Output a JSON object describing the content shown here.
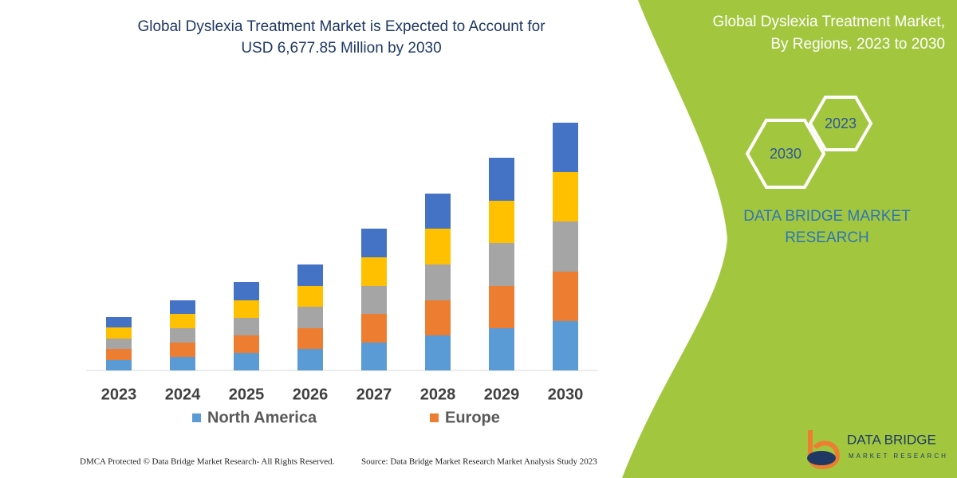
{
  "chart_data": {
    "type": "bar",
    "stacked": true,
    "title": [
      "Global Dyslexia Treatment Market is Expected to Account for",
      "USD 6,677.85 Million by 2030"
    ],
    "categories": [
      "2023",
      "2024",
      "2025",
      "2026",
      "2027",
      "2028",
      "2029",
      "2030"
    ],
    "series": [
      {
        "name": "North America",
        "color": "#5b9bd5",
        "values": [
          13,
          17,
          22,
          27,
          35,
          44,
          53,
          62
        ]
      },
      {
        "name": "Europe",
        "color": "#ed7d31",
        "values": [
          14,
          18,
          22,
          26,
          36,
          44,
          53,
          62
        ]
      },
      {
        "name": null,
        "color": "#a5a5a5",
        "values": [
          13,
          18,
          22,
          27,
          35,
          45,
          54,
          63
        ]
      },
      {
        "name": null,
        "color": "#ffc000",
        "values": [
          14,
          18,
          22,
          26,
          36,
          45,
          53,
          62
        ]
      },
      {
        "name": null,
        "color": "#4472c4",
        "values": [
          13,
          17,
          23,
          27,
          36,
          44,
          54,
          62
        ]
      }
    ]
  },
  "side_panel": {
    "title": [
      "Global Dyslexia Treatment Market,",
      "By Regions, 2023 to 2030"
    ],
    "hexagons": [
      "2023",
      "2030"
    ],
    "brand": [
      "DATA BRIDGE MARKET",
      "RESEARCH"
    ]
  },
  "logo": {
    "name": "DATA BRIDGE",
    "tagline": "MARKET RESEARCH"
  },
  "footer": {
    "copyright": "DMCA Protected © Data Bridge Market Research-  All Rights Reserved.",
    "source": "Source: Data Bridge Market Research  Market Analysis Study 2023"
  }
}
